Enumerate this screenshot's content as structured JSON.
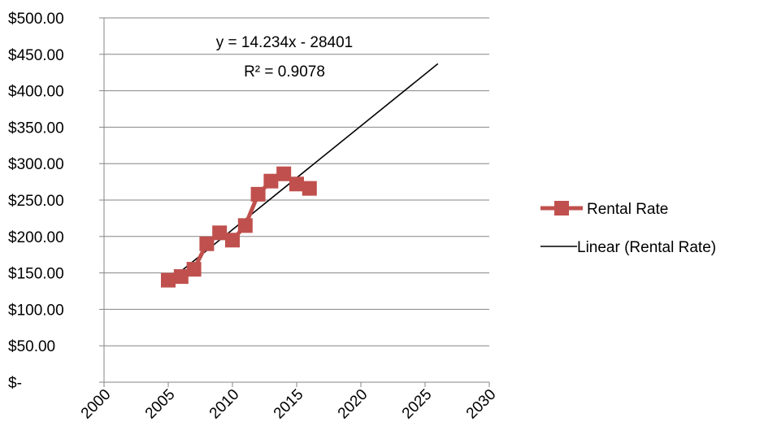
{
  "chart_data": {
    "type": "line",
    "title": "",
    "xlabel": "",
    "ylabel": "",
    "xlim": [
      2000,
      2030
    ],
    "ylim": [
      0,
      500
    ],
    "x_ticks": [
      2000,
      2005,
      2010,
      2015,
      2020,
      2025,
      2030
    ],
    "x_tick_labels": [
      "2000",
      "2005",
      "2010",
      "2015",
      "2020",
      "2025",
      "2030"
    ],
    "y_ticks": [
      0,
      50,
      100,
      150,
      200,
      250,
      300,
      350,
      400,
      450,
      500
    ],
    "y_tick_labels": [
      "$-",
      "$50.00",
      "$100.00",
      "$150.00",
      "$200.00",
      "$250.00",
      "$300.00",
      "$350.00",
      "$400.00",
      "$450.00",
      "$500.00"
    ],
    "grid": "horizontal",
    "legend_position": "right",
    "series": [
      {
        "name": "Rental Rate",
        "color": "#C0504D",
        "marker": "square",
        "x": [
          2005,
          2006,
          2007,
          2008,
          2009,
          2010,
          2011,
          2012,
          2013,
          2014,
          2015,
          2016
        ],
        "y": [
          140,
          145,
          155,
          190,
          205,
          195,
          215,
          258,
          276,
          286,
          272,
          266
        ]
      }
    ],
    "trendline": {
      "name": "Linear (Rental Rate)",
      "color": "#000000",
      "type": "linear",
      "x_range": [
        2005,
        2026
      ],
      "equation": "y = 14.234x - 28401",
      "r_squared": "R² = 0.9078",
      "slope": 14.234,
      "intercept": -28401
    }
  }
}
